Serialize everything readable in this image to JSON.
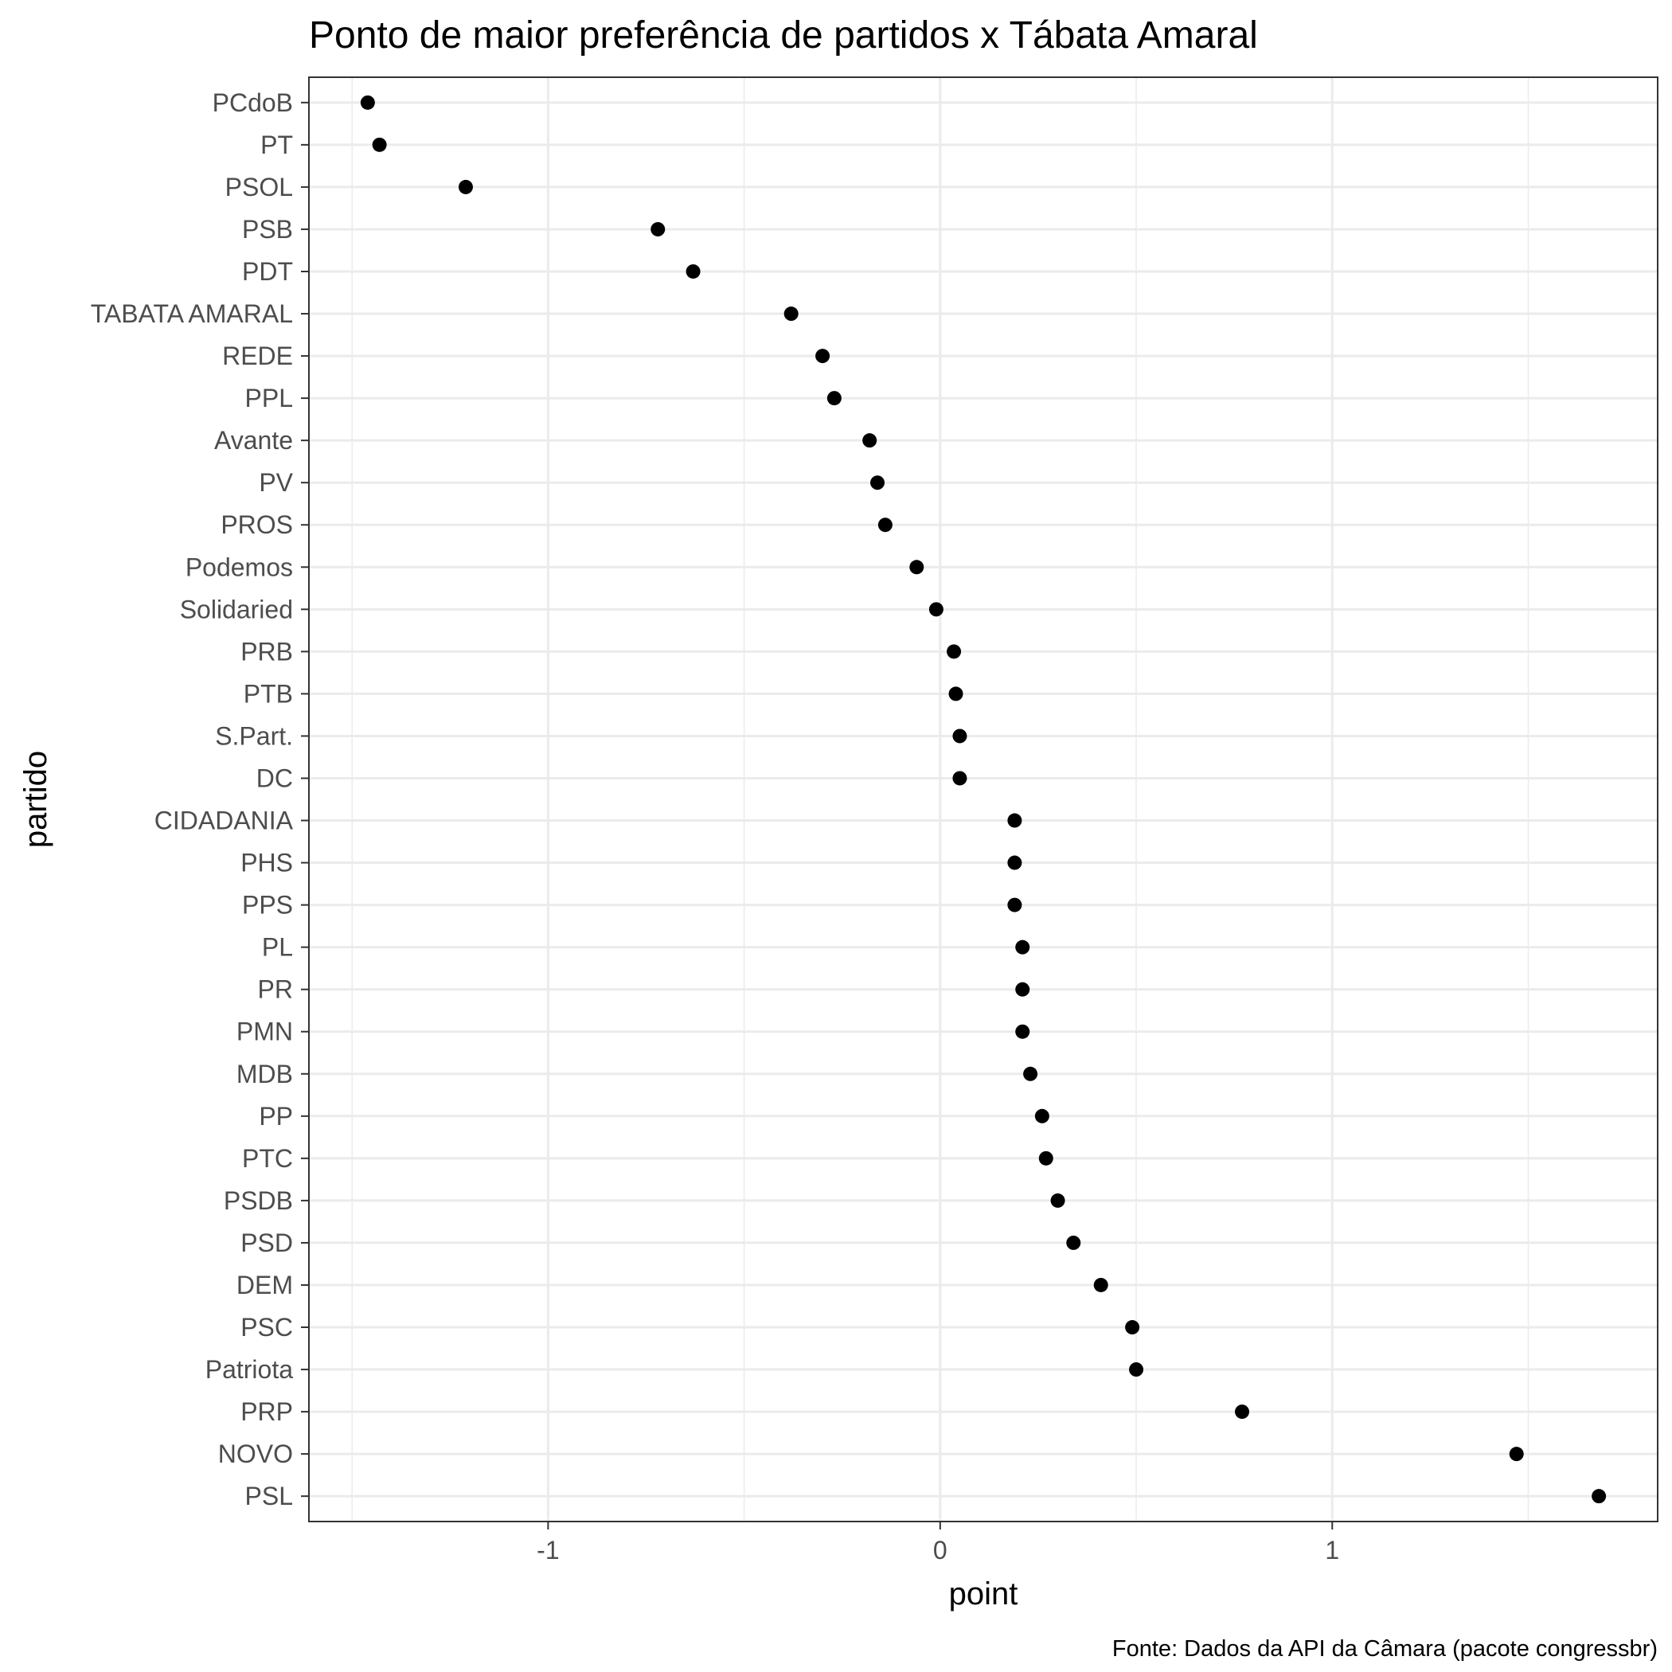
{
  "chart_data": {
    "type": "scatter",
    "title": "Ponto de maior preferência de partidos x Tábata Amaral",
    "xlabel": "point",
    "ylabel": "partido",
    "caption": "Fonte: Dados da API da Câmara (pacote congressbr)",
    "xlim": [
      -1.61,
      1.83
    ],
    "xticks": [
      {
        "value": -1,
        "label": "-1"
      },
      {
        "value": 0,
        "label": "0"
      },
      {
        "value": 1,
        "label": "1"
      }
    ],
    "x_minor_gridlines": [
      -1.5,
      -0.5,
      0.5,
      1.5
    ],
    "grid": true,
    "legend": "none",
    "point_color": "#000000",
    "gridline_color": "#ebebeb",
    "categories": [
      "PCdoB",
      "PT",
      "PSOL",
      "PSB",
      "PDT",
      "TABATA AMARAL",
      "REDE",
      "PPL",
      "Avante",
      "PV",
      "PROS",
      "Podemos",
      "Solidaried",
      "PRB",
      "PTB",
      "S.Part.",
      "DC",
      "CIDADANIA",
      "PHS",
      "PPS",
      "PL",
      "PR",
      "PMN",
      "MDB",
      "PP",
      "PTC",
      "PSDB",
      "PSD",
      "DEM",
      "PSC",
      "Patriota",
      "PRP",
      "NOVO",
      "PSL"
    ],
    "values": [
      -1.46,
      -1.43,
      -1.21,
      -0.72,
      -0.63,
      -0.38,
      -0.3,
      -0.27,
      -0.18,
      -0.16,
      -0.14,
      -0.06,
      -0.01,
      0.035,
      0.04,
      0.05,
      0.05,
      0.19,
      0.19,
      0.19,
      0.21,
      0.21,
      0.21,
      0.23,
      0.26,
      0.27,
      0.3,
      0.34,
      0.41,
      0.49,
      0.5,
      0.77,
      1.47,
      1.68
    ]
  }
}
